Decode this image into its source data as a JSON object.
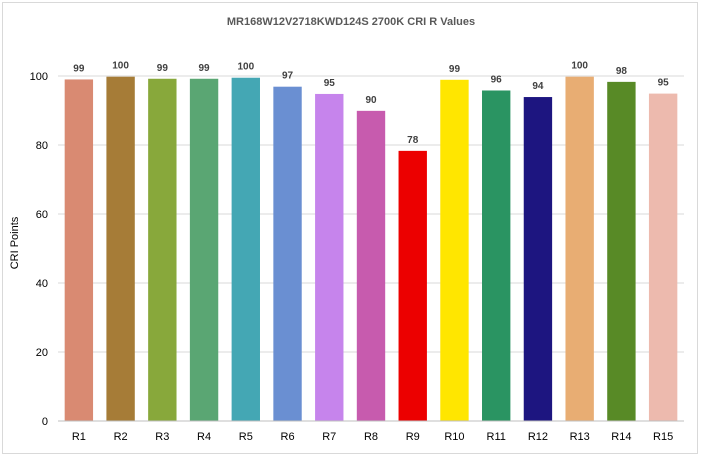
{
  "chart_data": {
    "type": "bar",
    "title": "MR168W12V2718KWD124S 2700K CRI R Values",
    "xlabel": "",
    "ylabel": "CRI Points",
    "ylim": [
      0,
      100
    ],
    "yticks": [
      0,
      20,
      40,
      60,
      80,
      100
    ],
    "grid": true,
    "legend": "none",
    "categories": [
      "R1",
      "R2",
      "R3",
      "R4",
      "R5",
      "R6",
      "R7",
      "R8",
      "R9",
      "R10",
      "R11",
      "R12",
      "R13",
      "R14",
      "R15"
    ],
    "values": [
      99,
      100,
      99,
      99,
      100,
      97,
      95,
      90,
      78,
      99,
      96,
      94,
      100,
      98,
      95
    ],
    "bar_values": [
      99,
      99.8,
      99.2,
      99.2,
      99.5,
      96.9,
      94.8,
      89.9,
      78.3,
      98.9,
      95.8,
      93.9,
      99.8,
      98.3,
      94.9
    ],
    "colors": [
      "#D98A72",
      "#A67C37",
      "#88A83B",
      "#5AA673",
      "#44A7B4",
      "#6A8FD2",
      "#C684EC",
      "#C75BAE",
      "#EC0000",
      "#FFE600",
      "#2A9462",
      "#1D1580",
      "#E8AD73",
      "#588A26",
      "#EDBAAE"
    ]
  }
}
